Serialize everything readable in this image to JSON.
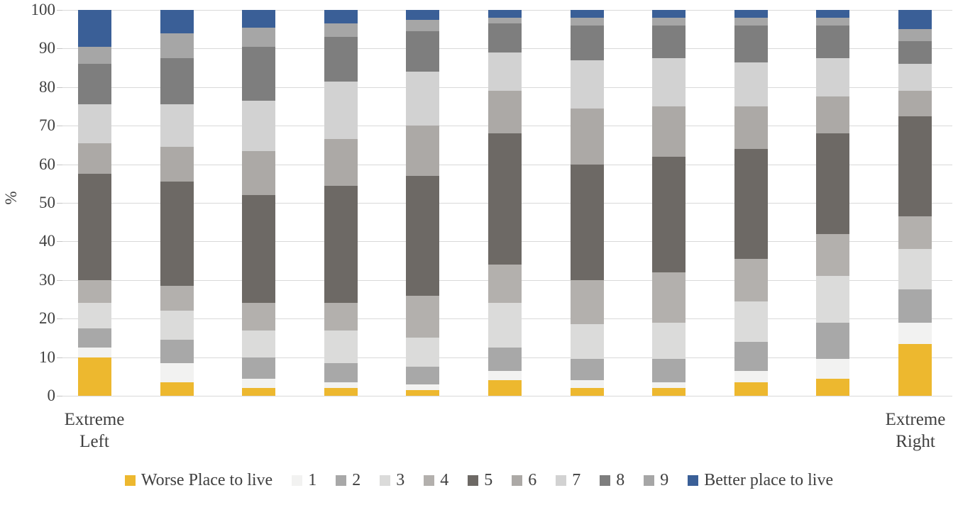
{
  "chart_data": {
    "type": "bar",
    "stacked": true,
    "title": "",
    "xlabel": "",
    "ylabel": "%",
    "ylim": [
      0,
      100
    ],
    "yticks": [
      0,
      10,
      20,
      30,
      40,
      50,
      60,
      70,
      80,
      90,
      100
    ],
    "grid": "horizontal",
    "legend_position": "bottom",
    "categories": [
      "Extreme Left",
      "",
      "",
      "",
      "",
      "",
      "",
      "",
      "",
      "",
      "Extreme Right"
    ],
    "x_labels": {
      "left_line1": "Extreme",
      "left_line2": "Left",
      "right_line1": "Extreme",
      "right_line2": "Right"
    },
    "series": [
      {
        "name": "Worse Place to live",
        "color": "#EDB82F",
        "values": [
          10,
          3.5,
          2,
          2,
          1.5,
          4,
          2,
          2,
          3.5,
          4.5,
          13.5
        ]
      },
      {
        "name": "1",
        "color": "#F2F2F1",
        "values": [
          2.5,
          5,
          2.5,
          1.5,
          1.5,
          2.5,
          2,
          1.5,
          3,
          5,
          5.5
        ]
      },
      {
        "name": "2",
        "color": "#A8A8A8",
        "values": [
          5,
          6,
          5.5,
          5,
          4.5,
          6,
          5.5,
          6,
          7.5,
          9.5,
          8.5
        ]
      },
      {
        "name": "3",
        "color": "#DBDBDA",
        "values": [
          6.5,
          7.5,
          7,
          8.5,
          7.5,
          11.5,
          9,
          9.5,
          10.5,
          12,
          10.5
        ]
      },
      {
        "name": "4",
        "color": "#B3B0AD",
        "values": [
          6,
          6.5,
          7,
          7,
          11,
          10,
          11.5,
          13,
          11,
          11,
          8.5
        ]
      },
      {
        "name": "5",
        "color": "#6D6965",
        "values": [
          27.5,
          27,
          28,
          30.5,
          31,
          34,
          30,
          30,
          28.5,
          26,
          26
        ]
      },
      {
        "name": "6",
        "color": "#ACA9A6",
        "values": [
          8,
          9,
          11.5,
          12,
          13,
          11,
          14.5,
          13,
          11,
          9.5,
          6.5
        ]
      },
      {
        "name": "7",
        "color": "#D2D2D2",
        "values": [
          10,
          11,
          13,
          15,
          14,
          10,
          12.5,
          12.5,
          11.5,
          10,
          7
        ]
      },
      {
        "name": "8",
        "color": "#7E7E7E",
        "values": [
          10.5,
          12,
          14,
          11.5,
          10.5,
          7.5,
          9,
          8.5,
          9.5,
          8.5,
          6
        ]
      },
      {
        "name": "9",
        "color": "#A6A6A6",
        "values": [
          4.5,
          6.5,
          5,
          3.5,
          3,
          1.5,
          2,
          2,
          2,
          2,
          3
        ]
      },
      {
        "name": "Better place to live",
        "color": "#3A5F97",
        "values": [
          9.5,
          6,
          4.5,
          3.5,
          2.5,
          2,
          2,
          2,
          2,
          2,
          5
        ]
      }
    ]
  }
}
